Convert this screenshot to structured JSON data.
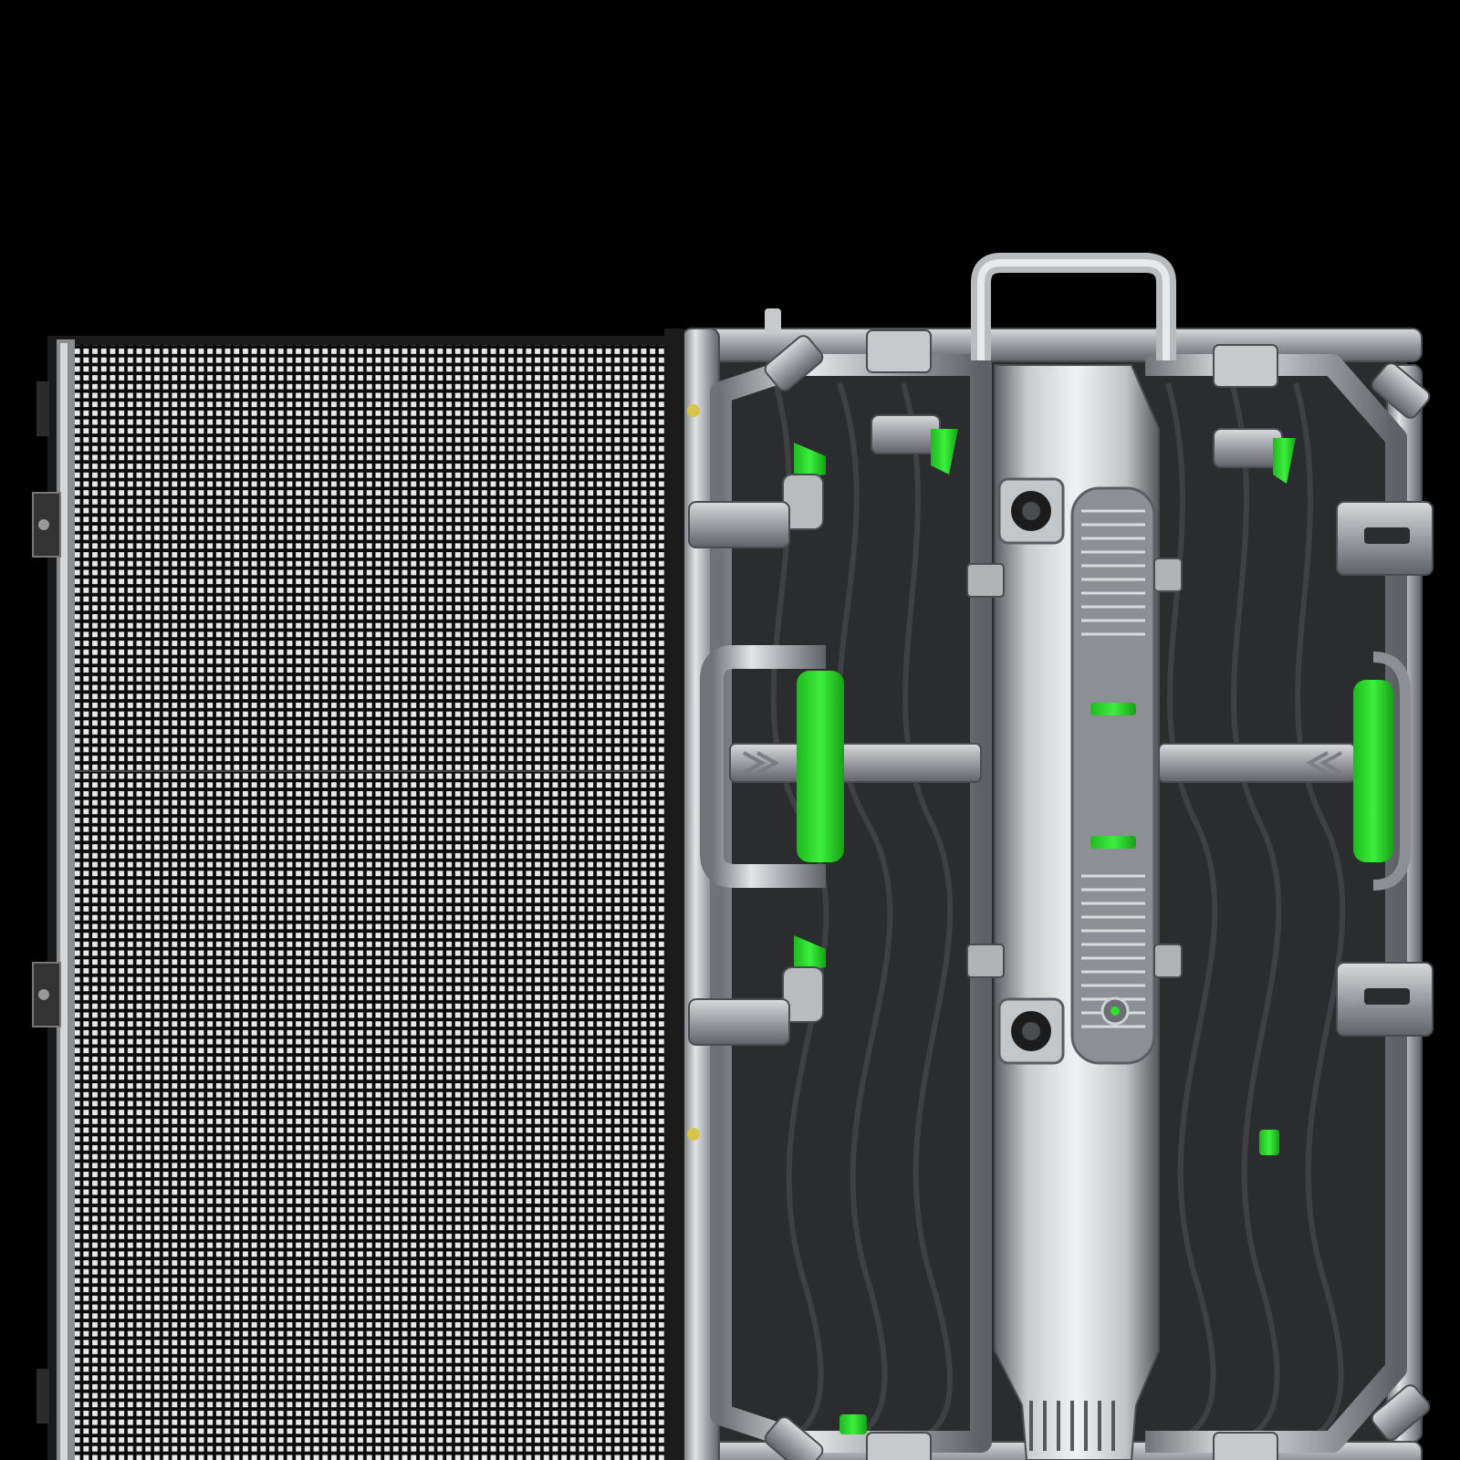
{
  "scene": {
    "background": "#000000",
    "subject": "led-display-cabinet",
    "led_grid": {
      "columns": 68,
      "rows": 68
    }
  },
  "colors": {
    "led_on": "#e9e9e9",
    "led_off": "#0b0b0b",
    "frame_metal_light": "#d9dbdd",
    "frame_metal_mid": "#9ea2a6",
    "frame_metal_dark": "#55595d",
    "back_panel": "#2a2c2e",
    "back_panel_rib": "#3c3f42",
    "accent_green": "#2fe02f",
    "connector_dark": "#1c1c1c"
  },
  "icons": {
    "carry_handle": "handle-icon",
    "side_grip": "grip-icon",
    "connector": "connector-icon",
    "latch": "latch-icon"
  }
}
